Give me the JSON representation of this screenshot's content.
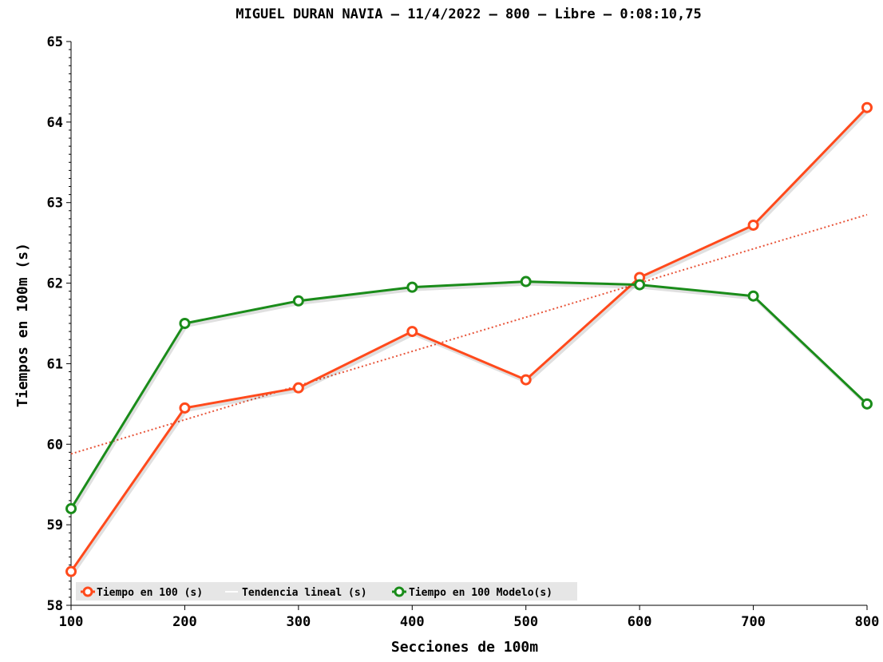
{
  "chart_data": {
    "type": "line",
    "title": "MIGUEL DURAN NAVIA – 11/4/2022 – 800 – Libre – 0:08:10,75",
    "xlabel": "Secciones de 100m",
    "ylabel": "Tiempos en 100m (s)",
    "x": [
      100,
      200,
      300,
      400,
      500,
      600,
      700,
      800
    ],
    "xlim": [
      100,
      800
    ],
    "ylim": [
      58,
      65
    ],
    "xticks": [
      "100",
      "200",
      "300",
      "400",
      "500",
      "600",
      "700",
      "800"
    ],
    "yticks": [
      "58",
      "59",
      "60",
      "61",
      "62",
      "63",
      "64",
      "65"
    ],
    "grid": false,
    "legend_position": "bottom-left",
    "series": [
      {
        "name": "Tiempo en 100 (s)",
        "color": "#ff4a1c",
        "style": "solid-markers",
        "values": [
          58.42,
          60.45,
          60.7,
          61.4,
          60.8,
          62.07,
          62.72,
          64.18
        ]
      },
      {
        "name": "Tendencia lineal (s)",
        "color": "#e8553a",
        "style": "dotted",
        "values": [
          59.88,
          60.3,
          60.73,
          61.15,
          61.58,
          62.0,
          62.43,
          62.85
        ]
      },
      {
        "name": "Tiempo en 100 Modelo(s)",
        "color": "#1a8c1a",
        "style": "solid-markers",
        "values": [
          59.2,
          61.5,
          61.78,
          61.95,
          62.02,
          61.98,
          61.84,
          60.5
        ]
      }
    ]
  }
}
